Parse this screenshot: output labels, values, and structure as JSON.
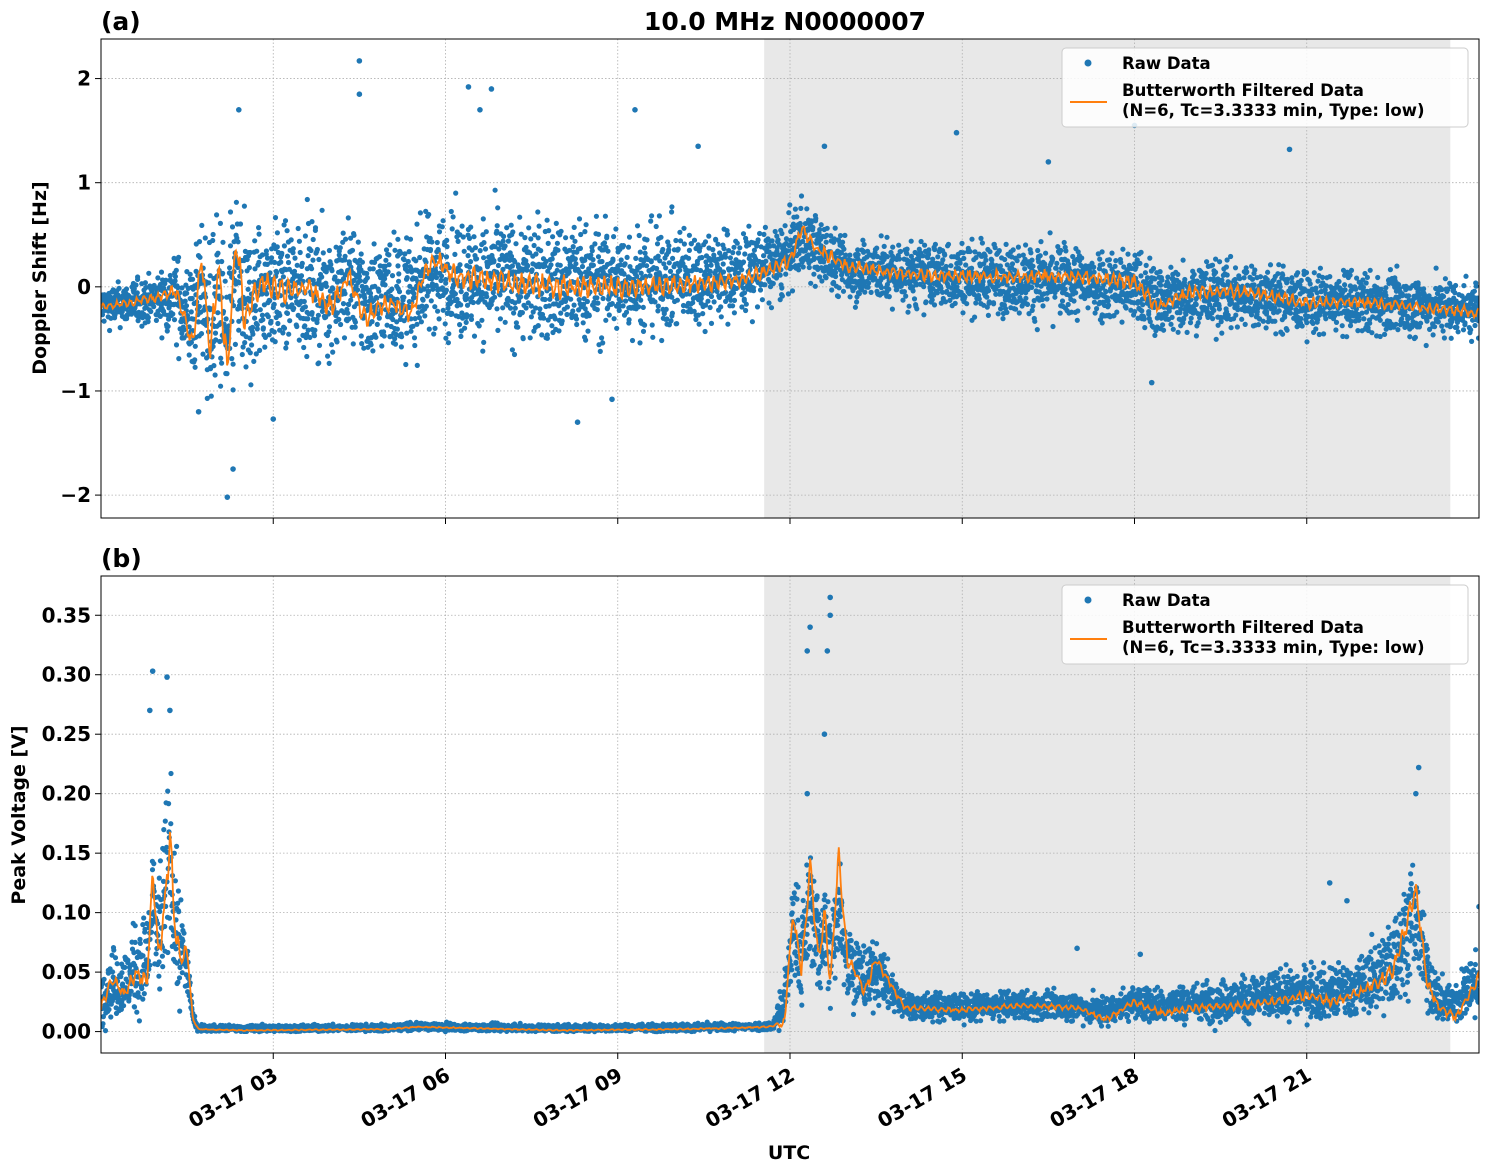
{
  "chart_data": [
    {
      "panel_label": "(a)",
      "title": "10.0 MHz N0000007",
      "type": "scatter",
      "ylabel": "Doppler Shift [Hz]",
      "xlabel": "",
      "xlim_hours": [
        0.0,
        24.0
      ],
      "ylim": [
        -2.22,
        2.38
      ],
      "yticks": [
        -2,
        -1,
        0,
        1,
        2
      ],
      "ytick_labels": [
        "−2",
        "−1",
        "0",
        "1",
        "2"
      ],
      "grid": true,
      "shaded_region_hours": [
        11.55,
        23.5
      ],
      "legend_position": "top-right",
      "series": [
        {
          "name": "Raw Data",
          "kind": "points",
          "color": "#1f77b4",
          "envelope": [
            {
              "t": 0.0,
              "lo": -0.45,
              "hi": 0.1
            },
            {
              "t": 1.0,
              "lo": -0.5,
              "hi": 0.2
            },
            {
              "t": 1.6,
              "lo": -1.0,
              "hi": 0.7
            },
            {
              "t": 2.2,
              "lo": -1.8,
              "hi": 1.0
            },
            {
              "t": 3.0,
              "lo": -0.9,
              "hi": 0.9
            },
            {
              "t": 5.0,
              "lo": -0.8,
              "hi": 0.9
            },
            {
              "t": 8.0,
              "lo": -0.8,
              "hi": 1.0
            },
            {
              "t": 10.0,
              "lo": -0.6,
              "hi": 0.9
            },
            {
              "t": 11.8,
              "lo": -0.3,
              "hi": 0.8
            },
            {
              "t": 12.1,
              "lo": -0.1,
              "hi": 1.0
            },
            {
              "t": 13.0,
              "lo": -0.3,
              "hi": 0.6
            },
            {
              "t": 15.0,
              "lo": -0.4,
              "hi": 0.6
            },
            {
              "t": 18.0,
              "lo": -0.6,
              "hi": 0.5
            },
            {
              "t": 21.0,
              "lo": -0.6,
              "hi": 0.3
            },
            {
              "t": 24.0,
              "lo": -0.6,
              "hi": 0.25
            }
          ],
          "outliers": [
            [
              2.2,
              -2.02
            ],
            [
              2.3,
              -1.75
            ],
            [
              4.5,
              2.17
            ],
            [
              4.5,
              1.85
            ],
            [
              2.4,
              1.7
            ],
            [
              6.4,
              1.92
            ],
            [
              6.6,
              1.7
            ],
            [
              6.8,
              1.9
            ],
            [
              9.3,
              1.7
            ],
            [
              10.4,
              1.35
            ],
            [
              12.6,
              1.35
            ],
            [
              14.9,
              1.48
            ],
            [
              16.5,
              1.2
            ],
            [
              18.0,
              1.55
            ],
            [
              20.7,
              1.32
            ],
            [
              18.3,
              -0.92
            ],
            [
              8.3,
              -1.3
            ],
            [
              8.9,
              -1.08
            ],
            [
              3.0,
              -1.27
            ],
            [
              1.7,
              -1.2
            ]
          ]
        },
        {
          "name": "Butterworth Filtered Data\n(N=6, Tc=3.3333 min, Type: low)",
          "kind": "line",
          "color": "#ff7f0e",
          "x_hours": [
            0.0,
            0.5,
            1.0,
            1.3,
            1.6,
            1.75,
            1.9,
            2.05,
            2.2,
            2.35,
            2.5,
            2.8,
            3.2,
            3.6,
            4.0,
            4.3,
            4.6,
            5.0,
            5.4,
            5.6,
            5.8,
            6.2,
            7.0,
            8.0,
            9.0,
            10.0,
            11.0,
            11.6,
            12.0,
            12.2,
            12.5,
            13.0,
            14.0,
            15.0,
            16.0,
            17.0,
            18.0,
            18.4,
            19.0,
            20.0,
            21.0,
            22.0,
            23.0,
            24.0
          ],
          "y_values": [
            -0.2,
            -0.15,
            -0.1,
            -0.05,
            -0.55,
            0.3,
            -0.6,
            0.2,
            -0.8,
            0.5,
            -0.3,
            0.05,
            -0.05,
            0.0,
            -0.2,
            0.1,
            -0.3,
            -0.15,
            -0.25,
            0.1,
            0.25,
            0.1,
            0.05,
            0.0,
            0.0,
            0.02,
            0.05,
            0.15,
            0.25,
            0.55,
            0.35,
            0.2,
            0.12,
            0.1,
            0.1,
            0.1,
            0.05,
            -0.2,
            -0.05,
            -0.05,
            -0.15,
            -0.15,
            -0.2,
            -0.25
          ]
        }
      ]
    },
    {
      "panel_label": "(b)",
      "title": "",
      "type": "scatter",
      "ylabel": "Peak Voltage [V]",
      "xlabel": "UTC",
      "xlim_hours": [
        0.0,
        24.0
      ],
      "ylim": [
        -0.018,
        0.383
      ],
      "yticks": [
        0.0,
        0.05,
        0.1,
        0.15,
        0.2,
        0.25,
        0.3,
        0.35
      ],
      "ytick_labels": [
        "0.00",
        "0.05",
        "0.10",
        "0.15",
        "0.20",
        "0.25",
        "0.30",
        "0.35"
      ],
      "xticks_hours": [
        3,
        6,
        9,
        12,
        15,
        18,
        21
      ],
      "xtick_labels": [
        "03-17 03",
        "03-17 06",
        "03-17 09",
        "03-17 12",
        "03-17 15",
        "03-17 18",
        "03-17 21"
      ],
      "grid": true,
      "shaded_region_hours": [
        11.55,
        23.5
      ],
      "legend_position": "top-right",
      "series": [
        {
          "name": "Raw Data",
          "kind": "points",
          "color": "#1f77b4",
          "envelope": [
            {
              "t": 0.0,
              "lo": 0.0,
              "hi": 0.07
            },
            {
              "t": 0.5,
              "lo": 0.0,
              "hi": 0.1
            },
            {
              "t": 0.9,
              "lo": 0.005,
              "hi": 0.15
            },
            {
              "t": 1.2,
              "lo": 0.01,
              "hi": 0.25
            },
            {
              "t": 1.5,
              "lo": 0.005,
              "hi": 0.08
            },
            {
              "t": 1.65,
              "lo": 0.0,
              "hi": 0.008
            },
            {
              "t": 11.7,
              "lo": 0.0,
              "hi": 0.01
            },
            {
              "t": 12.1,
              "lo": 0.01,
              "hi": 0.15
            },
            {
              "t": 12.6,
              "lo": 0.01,
              "hi": 0.15
            },
            {
              "t": 13.5,
              "lo": 0.005,
              "hi": 0.08
            },
            {
              "t": 14.0,
              "lo": 0.005,
              "hi": 0.04
            },
            {
              "t": 17.0,
              "lo": 0.005,
              "hi": 0.04
            },
            {
              "t": 20.0,
              "lo": 0.005,
              "hi": 0.06
            },
            {
              "t": 22.0,
              "lo": 0.005,
              "hi": 0.08
            },
            {
              "t": 22.8,
              "lo": 0.005,
              "hi": 0.15
            },
            {
              "t": 23.3,
              "lo": 0.005,
              "hi": 0.06
            },
            {
              "t": 24.0,
              "lo": 0.005,
              "hi": 0.08
            }
          ],
          "outliers": [
            [
              0.9,
              0.303
            ],
            [
              1.15,
              0.298
            ],
            [
              1.2,
              0.27
            ],
            [
              0.85,
              0.27
            ],
            [
              12.35,
              0.34
            ],
            [
              12.7,
              0.365
            ],
            [
              12.7,
              0.35
            ],
            [
              12.65,
              0.32
            ],
            [
              12.6,
              0.25
            ],
            [
              12.3,
              0.32
            ],
            [
              12.3,
              0.2
            ],
            [
              22.95,
              0.222
            ],
            [
              22.9,
              0.2
            ],
            [
              21.4,
              0.125
            ],
            [
              21.7,
              0.11
            ],
            [
              17.0,
              0.07
            ],
            [
              18.1,
              0.065
            ],
            [
              24.0,
              0.105
            ]
          ]
        },
        {
          "name": "Butterworth Filtered Data\n(N=6, Tc=3.3333 min, Type: low)",
          "kind": "line",
          "color": "#ff7f0e",
          "x_hours": [
            0.0,
            0.2,
            0.4,
            0.6,
            0.8,
            0.9,
            1.0,
            1.1,
            1.2,
            1.3,
            1.4,
            1.5,
            1.6,
            1.7,
            2.5,
            5.0,
            5.5,
            8.0,
            10.0,
            11.0,
            11.6,
            11.9,
            12.05,
            12.2,
            12.35,
            12.5,
            12.6,
            12.7,
            12.85,
            13.0,
            13.3,
            13.5,
            14.0,
            15.0,
            16.0,
            17.0,
            17.5,
            18.0,
            18.5,
            19.0,
            20.0,
            21.0,
            21.5,
            22.0,
            22.5,
            22.9,
            23.1,
            23.3,
            23.6,
            24.0
          ],
          "y_values": [
            0.02,
            0.045,
            0.03,
            0.05,
            0.04,
            0.135,
            0.06,
            0.1,
            0.165,
            0.08,
            0.06,
            0.07,
            0.01,
            0.002,
            0.001,
            0.002,
            0.004,
            0.001,
            0.002,
            0.003,
            0.004,
            0.006,
            0.1,
            0.05,
            0.14,
            0.06,
            0.1,
            0.04,
            0.15,
            0.06,
            0.035,
            0.06,
            0.02,
            0.018,
            0.022,
            0.02,
            0.01,
            0.025,
            0.015,
            0.02,
            0.022,
            0.03,
            0.025,
            0.035,
            0.05,
            0.12,
            0.04,
            0.02,
            0.012,
            0.045
          ]
        }
      ]
    }
  ]
}
